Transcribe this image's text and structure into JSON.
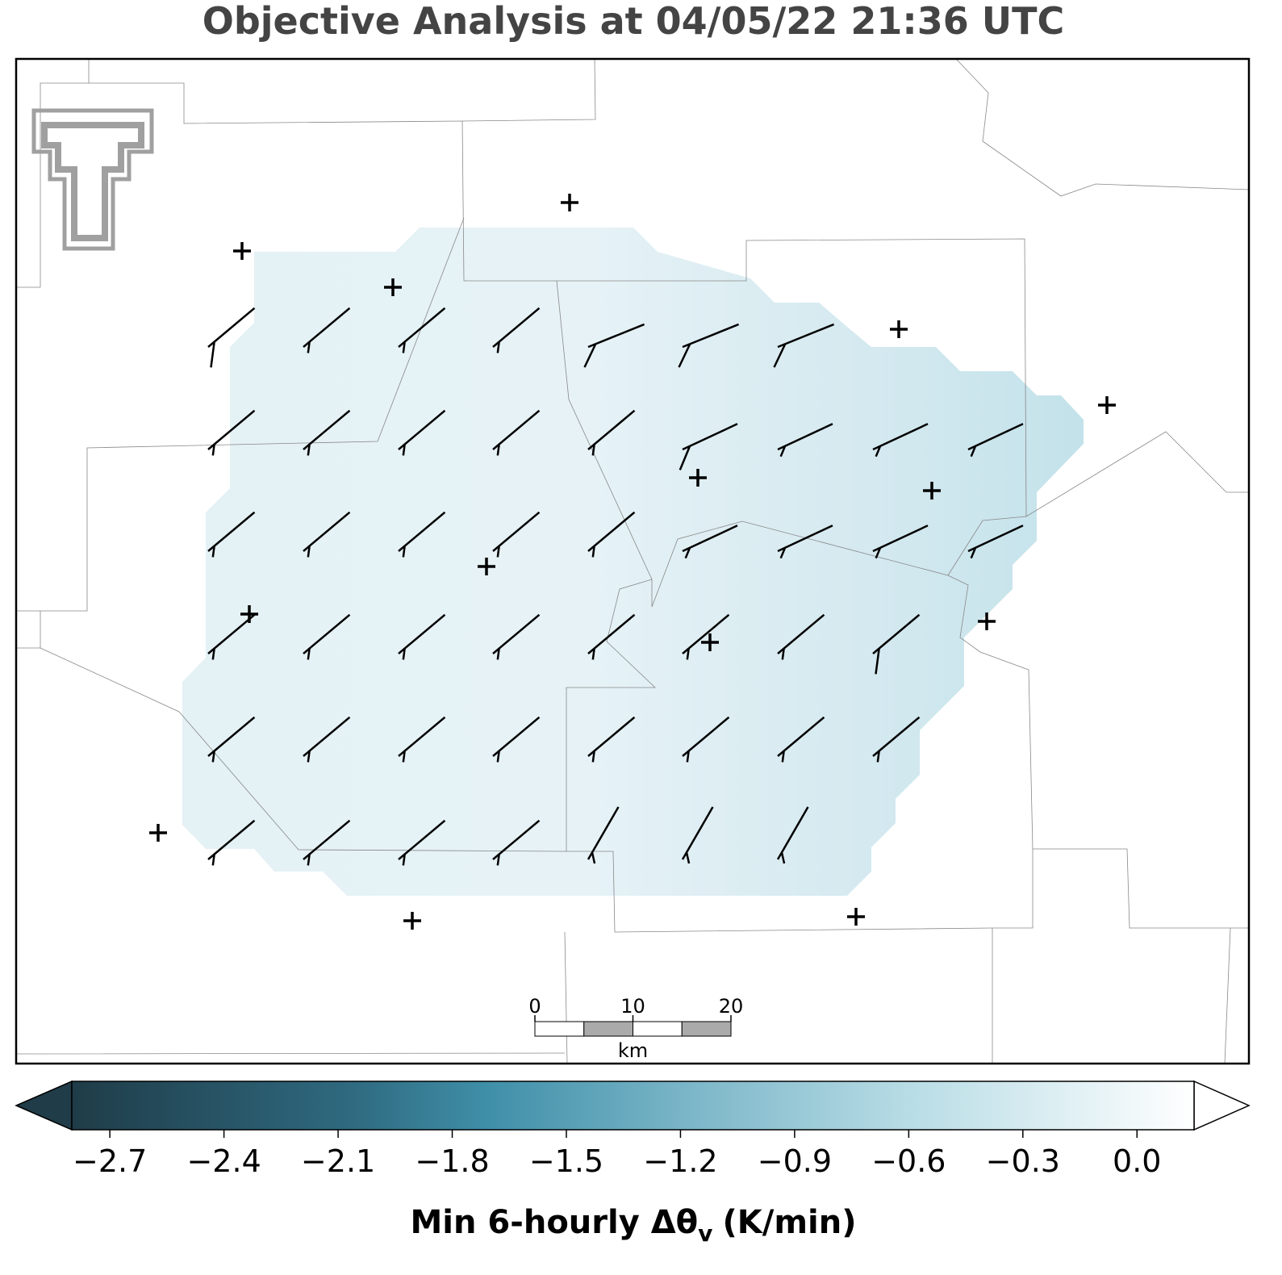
{
  "title": "Objective Analysis at 04/05/22 21:36 UTC",
  "colorbar": {
    "label": {
      "main": "Min 6-hourly Δθ",
      "subscript": "v",
      "unit": "(K/min)"
    },
    "lim": [
      -2.8,
      0.15
    ],
    "ticks": [
      {
        "value": -2.7,
        "label": "−2.7"
      },
      {
        "value": -2.4,
        "label": "−2.4"
      },
      {
        "value": -2.1,
        "label": "−2.1"
      },
      {
        "value": -1.8,
        "label": "−1.8"
      },
      {
        "value": -1.5,
        "label": "−1.5"
      },
      {
        "value": -1.2,
        "label": "−1.2"
      },
      {
        "value": -0.9,
        "label": "−0.9"
      },
      {
        "value": -0.6,
        "label": "−0.6"
      },
      {
        "value": -0.3,
        "label": "−0.3"
      },
      {
        "value": 0.0,
        "label": "0.0"
      }
    ]
  },
  "scale_bar": {
    "ticks": [
      0,
      10,
      20
    ],
    "unit": "km"
  }
}
